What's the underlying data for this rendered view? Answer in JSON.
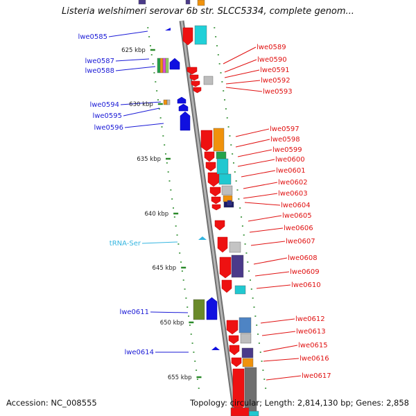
{
  "title": "Listeria welshimeri serovar 6b str. SLCC5334, complete genom...",
  "footer": {
    "accession": "Accession: NC_008555",
    "summary": "Topology: circular; Length: 2,814,130 bp; Genes: 2,858"
  },
  "colors": {
    "left_label": "#1a1ad6",
    "right_label": "#e01010",
    "trna_label": "#33b5e0",
    "backbone": "#8a8a8a",
    "tick": "#2a8a2a",
    "forward_gene": "#1010e0",
    "reverse_gene": "#ee1111"
  },
  "kbp_ticks": [
    {
      "kbp": 625,
      "label": "625 kbp"
    },
    {
      "kbp": 630,
      "label": "630 kbp"
    },
    {
      "kbp": 635,
      "label": "635 kbp"
    },
    {
      "kbp": 640,
      "label": "640 kbp"
    },
    {
      "kbp": 645,
      "label": "645 kbp"
    },
    {
      "kbp": 650,
      "label": "650 kbp"
    },
    {
      "kbp": 655,
      "label": "655 kbp"
    }
  ],
  "left_labels": [
    {
      "text": "lwe0585",
      "type": "gene"
    },
    {
      "text": "lwe0587",
      "type": "gene"
    },
    {
      "text": "lwe0588",
      "type": "gene"
    },
    {
      "text": "lwe0594",
      "type": "gene"
    },
    {
      "text": "lwe0595",
      "type": "gene"
    },
    {
      "text": "lwe0596",
      "type": "gene"
    },
    {
      "text": "tRNA-Ser",
      "type": "trna"
    },
    {
      "text": "lwe0611",
      "type": "gene"
    },
    {
      "text": "lwe0614",
      "type": "gene"
    }
  ],
  "right_labels": [
    "lwe0589",
    "lwe0590",
    "lwe0591",
    "lwe0592",
    "lwe0593",
    "lwe0597",
    "lwe0598",
    "lwe0599",
    "lwe0600",
    "lwe0601",
    "lwe0602",
    "lwe0603",
    "lwe0604",
    "lwe0605",
    "lwe0606",
    "lwe0607",
    "lwe0608",
    "lwe0609",
    "lwe0610",
    "lwe0612",
    "lwe0613",
    "lwe0615",
    "lwe0616",
    "lwe0617"
  ]
}
